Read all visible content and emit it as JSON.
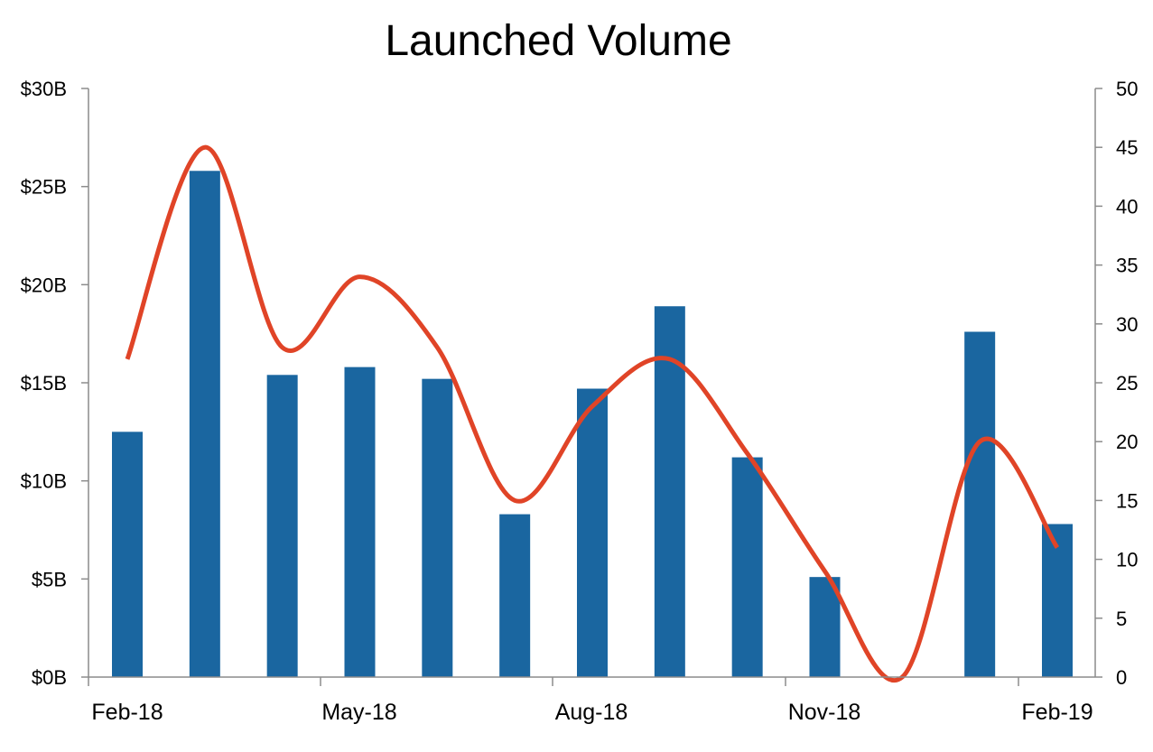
{
  "chart_data": {
    "type": "bar",
    "title": "Launched Volume",
    "x_tick_labels": [
      "Feb-18",
      "May-18",
      "Aug-18",
      "Nov-18",
      "Feb-19"
    ],
    "categories": [
      "Feb-18",
      "Mar-18",
      "Apr-18",
      "May-18",
      "Jun-18",
      "Jul-18",
      "Aug-18",
      "Sep-18",
      "Oct-18",
      "Nov-18",
      "Dec-18",
      "Jan-19",
      "Feb-19"
    ],
    "series": [
      {
        "type": "bar",
        "axis": "left",
        "color": "#1a66a0",
        "values": [
          12.5,
          25.8,
          15.4,
          15.8,
          15.2,
          8.3,
          14.7,
          18.9,
          11.2,
          5.1,
          0,
          17.6,
          7.8
        ]
      },
      {
        "type": "line",
        "smooth": true,
        "axis": "right",
        "color": "#e04427",
        "values": [
          27,
          45,
          28,
          34,
          28,
          15,
          23,
          27,
          19,
          9,
          0,
          20,
          11
        ]
      }
    ],
    "y_left": {
      "ylim": [
        0,
        30
      ],
      "ticks": [
        "$0B",
        "$5B",
        "$10B",
        "$15B",
        "$20B",
        "$25B",
        "$30B"
      ]
    },
    "y_right": {
      "ylim": [
        0,
        50
      ],
      "ticks": [
        "0",
        "5",
        "10",
        "15",
        "20",
        "25",
        "30",
        "35",
        "40",
        "45",
        "50"
      ]
    },
    "grid": false,
    "legend": "none"
  }
}
